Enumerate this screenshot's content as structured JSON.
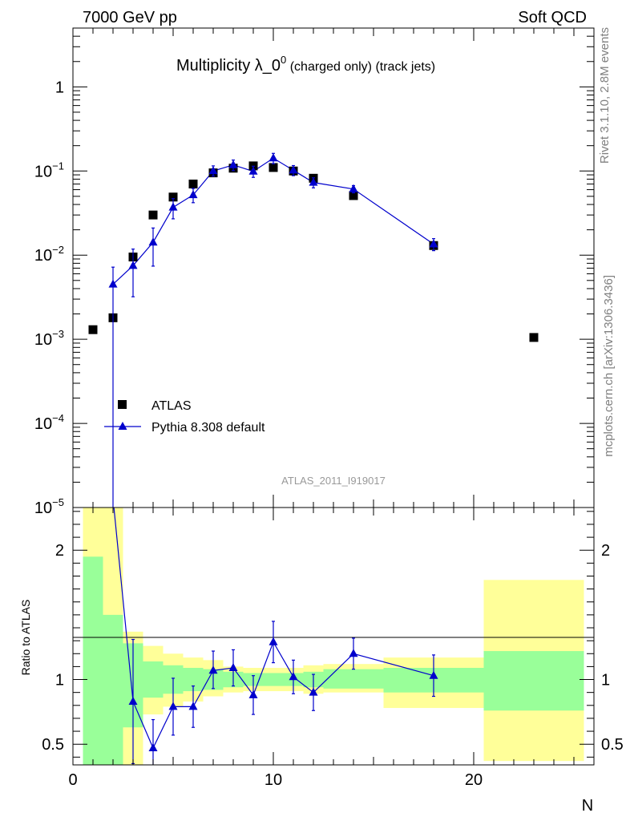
{
  "header": {
    "left": "7000 GeV pp",
    "right": "Soft QCD"
  },
  "side_labels": {
    "rivet": "Rivet 3.1.10,  2.8M events",
    "mcplots": "mcplots.cern.ch [arXiv:1306.3436]"
  },
  "chart_data": {
    "type": "scatter",
    "title_main": "Multiplicity λ_0",
    "title_sup": "0",
    "title_tail": " (charged only) (track jets)",
    "xlabel": "N",
    "ylabel_lower": "Ratio to ATLAS",
    "watermark": "ATLAS_2011_I919017",
    "xlim": [
      0,
      26
    ],
    "xticks": [
      "0",
      "10",
      "20"
    ],
    "upper": {
      "yscale": "log",
      "ylim": [
        1e-05,
        5
      ],
      "yticks": [
        {
          "value": 1,
          "label": "1"
        },
        {
          "value": 0.1,
          "label": "10",
          "exp": "−1"
        },
        {
          "value": 0.01,
          "label": "10",
          "exp": "−2"
        },
        {
          "value": 0.001,
          "label": "10",
          "exp": "−3"
        },
        {
          "value": 0.0001,
          "label": "10",
          "exp": "−4"
        },
        {
          "value": 1e-05,
          "label": "10",
          "exp": "−5"
        }
      ]
    },
    "lower": {
      "ylim": [
        0.34,
        2.33
      ],
      "yticks": [
        {
          "value": 0.5,
          "label": "0.5"
        },
        {
          "value": 1,
          "label": "1"
        },
        {
          "value": 2,
          "label": "2"
        }
      ],
      "bands": [
        {
          "x0": 0.5,
          "x1": 1.5,
          "g": [
            0.34,
            1.95
          ],
          "y": [
            0.34,
            2.33
          ]
        },
        {
          "x0": 1.5,
          "x1": 2.5,
          "g": [
            0.34,
            1.5
          ],
          "y": [
            0.34,
            2.33
          ]
        },
        {
          "x0": 2.5,
          "x1": 3.5,
          "g": [
            0.63,
            1.28
          ],
          "y": [
            0.34,
            1.37
          ]
        },
        {
          "x0": 3.5,
          "x1": 4.5,
          "g": [
            0.86,
            1.14
          ],
          "y": [
            0.73,
            1.26
          ]
        },
        {
          "x0": 4.5,
          "x1": 5.5,
          "g": [
            0.89,
            1.11
          ],
          "y": [
            0.79,
            1.2
          ]
        },
        {
          "x0": 5.5,
          "x1": 6.5,
          "g": [
            0.91,
            1.09
          ],
          "y": [
            0.83,
            1.17
          ]
        },
        {
          "x0": 6.5,
          "x1": 7.5,
          "g": [
            0.92,
            1.08
          ],
          "y": [
            0.87,
            1.15
          ]
        },
        {
          "x0": 7.5,
          "x1": 8.5,
          "g": [
            0.94,
            1.06
          ],
          "y": [
            0.9,
            1.1
          ]
        },
        {
          "x0": 8.5,
          "x1": 9.5,
          "g": [
            0.95,
            1.05
          ],
          "y": [
            0.91,
            1.09
          ]
        },
        {
          "x0": 9.5,
          "x1": 10.5,
          "g": [
            0.95,
            1.05
          ],
          "y": [
            0.91,
            1.09
          ]
        },
        {
          "x0": 10.5,
          "x1": 11.5,
          "g": [
            0.95,
            1.05
          ],
          "y": [
            0.91,
            1.09
          ]
        },
        {
          "x0": 11.5,
          "x1": 12.5,
          "g": [
            0.94,
            1.06
          ],
          "y": [
            0.89,
            1.11
          ]
        },
        {
          "x0": 12.5,
          "x1": 15.5,
          "g": [
            0.93,
            1.08
          ],
          "y": [
            0.9,
            1.12
          ]
        },
        {
          "x0": 15.5,
          "x1": 20.5,
          "g": [
            0.9,
            1.09
          ],
          "y": [
            0.78,
            1.17
          ]
        },
        {
          "x0": 20.5,
          "x1": 25.5,
          "g": [
            0.76,
            1.22
          ],
          "y": [
            0.37,
            1.77
          ]
        }
      ]
    },
    "series": [
      {
        "name": "ATLAS",
        "color": "#000000",
        "marker": "square",
        "x": [
          1,
          2,
          3,
          4,
          5,
          6,
          7,
          8,
          9,
          10,
          11,
          12,
          14,
          18,
          23
        ],
        "y": [
          0.0013,
          0.0018,
          0.0095,
          0.03,
          0.049,
          0.07,
          0.095,
          0.108,
          0.115,
          0.11,
          0.1,
          0.082,
          0.051,
          0.013,
          0.00105
        ]
      },
      {
        "name": "Pythia 8.308 default",
        "color": "#0000cc",
        "marker": "triangle",
        "x": [
          2,
          3,
          4,
          5,
          6,
          7,
          8,
          9,
          10,
          11,
          12,
          14,
          18
        ],
        "y": [
          0.0045,
          0.0075,
          0.0142,
          0.037,
          0.052,
          0.1,
          0.118,
          0.099,
          0.142,
          0.102,
          0.073,
          0.061,
          0.0135
        ],
        "err_lo": [
          0.0045,
          0.0043,
          0.0068,
          0.01,
          0.01,
          0.013,
          0.017,
          0.015,
          0.02,
          0.014,
          0.01,
          0.006,
          0.0022
        ],
        "err_hi": [
          0.0027,
          0.0043,
          0.0068,
          0.01,
          0.01,
          0.015,
          0.017,
          0.015,
          0.02,
          0.014,
          0.01,
          0.006,
          0.0022
        ],
        "ratio": [
          2.4,
          0.83,
          0.47,
          0.79,
          0.79,
          1.07,
          1.09,
          0.88,
          1.29,
          1.02,
          0.9,
          1.2,
          1.03
        ],
        "ratio_err_lo": [
          0,
          0.48,
          0.22,
          0.22,
          0.16,
          0.14,
          0.14,
          0.15,
          0.16,
          0.13,
          0.14,
          0.12,
          0.16
        ],
        "ratio_err_hi": [
          0,
          0.48,
          0.22,
          0.22,
          0.16,
          0.15,
          0.14,
          0.15,
          0.16,
          0.13,
          0.14,
          0.12,
          0.16
        ]
      }
    ]
  }
}
